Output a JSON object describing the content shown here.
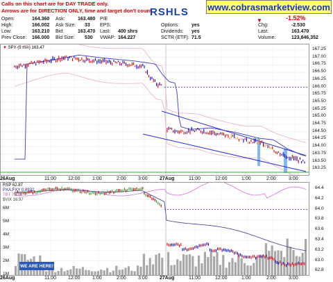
{
  "notice": {
    "line1": "Calls on this chart are for DAY TRADE only.",
    "line2": "Arrows are for DIRECTION ONLY, time and target don't count."
  },
  "symbol": "RSHLS",
  "site": "www.cobrasmarketview.com",
  "quote": {
    "open_label": "Open:",
    "open": "164.360",
    "high_label": "High:",
    "high": "166.002",
    "low_label": "Low:",
    "low": "163.210",
    "prev_close_label": "Prev Close:",
    "prev_close": "166.000",
    "ask_label": "Ask:",
    "ask": "163.480",
    "ask_size_label": "Ask Size:",
    "ask_size": "33",
    "bid_label": "Bid:",
    "bid": "163.470",
    "bid_size_label": "Bid Size:",
    "bid_size": "530",
    "pe_label": "P/E",
    "pe": "",
    "eps_label": "EPS:",
    "eps": "",
    "last_label": "Last:",
    "last_shares": "400 shrs",
    "vwap_label": "VWAP:",
    "vwap": "164.227",
    "options_label": "Options:",
    "options": "yes",
    "dividends_label": "Dividends:",
    "dividends": "yes",
    "sctr_label": "SCTR (ETF):",
    "sctr": "71.5",
    "change_pct": "-1.52%",
    "chg_label": "Chg:",
    "chg": "-2.530",
    "last2_label": "Last:",
    "last": "163.470",
    "volume_label": "Volume:",
    "volume": "123,846,352"
  },
  "colors": {
    "down": "#e00000",
    "up": "#0000cc",
    "ma": "#3b3bbf",
    "blue_band": "#6aaef0",
    "orange": "#f0a040"
  },
  "price_panel": {
    "legend": "SPY (5 min) 163.47",
    "y_ticks": [
      "167.25",
      "167.00",
      "166.75",
      "166.50",
      "166.25",
      "166.00",
      "165.75",
      "165.50",
      "165.25",
      "165.00",
      "164.75",
      "164.50",
      "164.25",
      "164.00",
      "163.75",
      "163.50",
      "163.25"
    ]
  },
  "x_labels": [
    "26Aug",
    "11:00",
    "12:00",
    "1:00",
    "2:00",
    "3:00",
    "27Aug",
    "11:00",
    "12:00",
    "1:00",
    "2:00",
    "3:00"
  ],
  "lower_panel": {
    "legend_rsp": "RSP 62.87",
    "legend_pxa": "PXA:FXY 0.8932",
    "legend_tbt": "TBT 76.63",
    "legend_vix": "$VIX 16.97",
    "y_ticks_right": [
      "64.4",
      "64.2",
      "64.0",
      "63.8",
      "63.6",
      "63.4",
      "63.2",
      "63.0",
      "62.8"
    ],
    "y_ticks_left": [
      "6M",
      "5M",
      "4M",
      "3M",
      "2M",
      "1M"
    ]
  },
  "badge": "WE ARE HERE!"
}
